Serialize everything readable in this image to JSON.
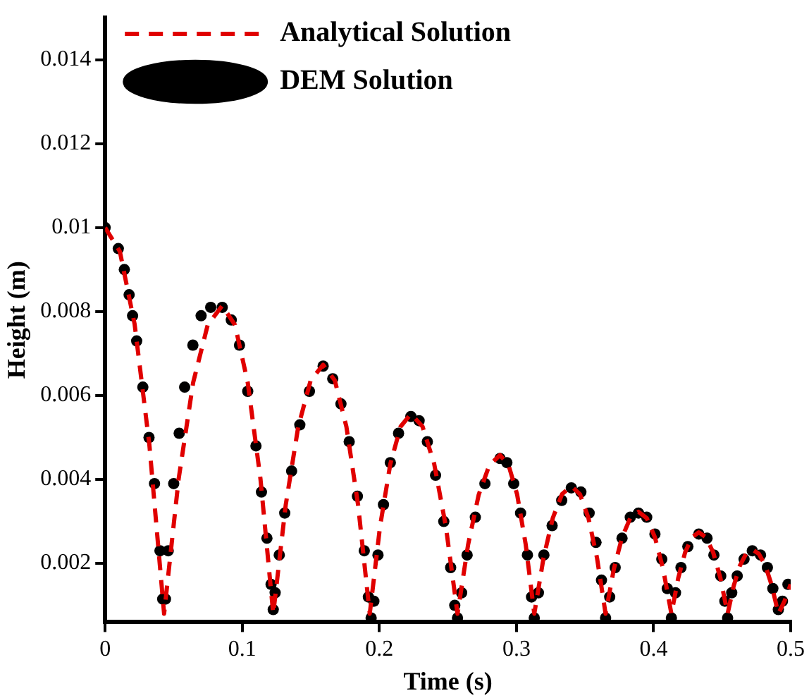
{
  "chart_data": {
    "type": "line",
    "xlabel": "Time (s)",
    "ylabel": "Height (m)",
    "xlim": [
      0,
      0.5
    ],
    "ylim": [
      0.0006,
      0.015
    ],
    "xticks": [
      0,
      0.1,
      0.2,
      0.3,
      0.4,
      0.5
    ],
    "yticks": [
      0.002,
      0.004,
      0.006,
      0.008,
      0.01,
      0.012,
      0.014
    ],
    "legend": "top left",
    "series": [
      {
        "name": "Analytical Solution",
        "type": "line",
        "line_style": "dashed",
        "marker": "none",
        "color": "#e00000",
        "x": [
          0,
          0.01075,
          0.0215,
          0.03225,
          0.043,
          0.0536,
          0.0642,
          0.0748,
          0.0854,
          0.0947,
          0.104,
          0.1133,
          0.1226,
          0.1317,
          0.1408,
          0.1499,
          0.159,
          0.1675,
          0.176,
          0.1845,
          0.193,
          0.2005,
          0.208,
          0.2155,
          0.223,
          0.2315,
          0.24,
          0.2485,
          0.257,
          0.26475,
          0.2725,
          0.28025,
          0.288,
          0.29425,
          0.3005,
          0.30675,
          0.313,
          0.31975,
          0.3265,
          0.33325,
          0.34,
          0.34625,
          0.3525,
          0.35875,
          0.365,
          0.371,
          0.377,
          0.383,
          0.389,
          0.395,
          0.401,
          0.407,
          0.413,
          0.418,
          0.423,
          0.428,
          0.433,
          0.43825,
          0.4435,
          0.44875,
          0.454,
          0.4585,
          0.463,
          0.4675,
          0.472,
          0.47675,
          0.4815,
          0.48625,
          0.491,
          0.4955,
          0.5
        ],
        "values": [
          0.01,
          0.00943,
          0.0077,
          0.00483,
          0.0008,
          0.00401,
          0.00631,
          0.00768,
          0.00814,
          0.00768,
          0.00631,
          0.00401,
          0.0008,
          0.00339,
          0.00525,
          0.00636,
          0.00673,
          0.00636,
          0.00525,
          0.00339,
          0.0008,
          0.00288,
          0.00437,
          0.00526,
          0.00556,
          0.00526,
          0.00437,
          0.00288,
          0.0008,
          0.00245,
          0.00364,
          0.00434,
          0.00458,
          0.00434,
          0.00364,
          0.00245,
          0.0008,
          0.00213,
          0.00308,
          0.00365,
          0.00384,
          0.00365,
          0.00308,
          0.00213,
          0.0008,
          0.00186,
          0.00262,
          0.00308,
          0.00323,
          0.00308,
          0.00262,
          0.00186,
          0.0008,
          0.00165,
          0.00226,
          0.00262,
          0.00274,
          0.00262,
          0.00226,
          0.00165,
          0.0008,
          0.00147,
          0.00195,
          0.00223,
          0.00233,
          0.00223,
          0.00195,
          0.00147,
          0.0008,
          0.0011,
          0.0015
        ]
      },
      {
        "name": "DEM Solution",
        "type": "scatter",
        "marker": "circle",
        "color": "#000000",
        "x": [
          0,
          0.0096,
          0.014,
          0.0175,
          0.02,
          0.023,
          0.0275,
          0.032,
          0.036,
          0.04,
          0.042,
          0.044,
          0.046,
          0.05,
          0.054,
          0.058,
          0.064,
          0.07,
          0.077,
          0.0854,
          0.092,
          0.098,
          0.104,
          0.11,
          0.114,
          0.118,
          0.121,
          0.1226,
          0.124,
          0.127,
          0.131,
          0.136,
          0.142,
          0.149,
          0.159,
          0.166,
          0.172,
          0.178,
          0.184,
          0.189,
          0.192,
          0.194,
          0.196,
          0.199,
          0.203,
          0.208,
          0.214,
          0.223,
          0.229,
          0.235,
          0.241,
          0.247,
          0.252,
          0.255,
          0.257,
          0.26,
          0.264,
          0.27,
          0.277,
          0.288,
          0.293,
          0.298,
          0.303,
          0.308,
          0.311,
          0.313,
          0.316,
          0.32,
          0.326,
          0.333,
          0.34,
          0.347,
          0.353,
          0.358,
          0.362,
          0.365,
          0.368,
          0.372,
          0.377,
          0.383,
          0.389,
          0.395,
          0.401,
          0.406,
          0.41,
          0.413,
          0.416,
          0.42,
          0.425,
          0.433,
          0.439,
          0.444,
          0.449,
          0.452,
          0.454,
          0.457,
          0.461,
          0.466,
          0.472,
          0.478,
          0.483,
          0.487,
          0.491,
          0.494,
          0.498
        ],
        "values": [
          0.01,
          0.0095,
          0.009,
          0.0084,
          0.0079,
          0.0073,
          0.0062,
          0.005,
          0.0039,
          0.0023,
          0.00115,
          0.00115,
          0.0023,
          0.0039,
          0.0051,
          0.0062,
          0.0072,
          0.0079,
          0.0081,
          0.0081,
          0.0078,
          0.0072,
          0.0061,
          0.0048,
          0.0037,
          0.0026,
          0.0015,
          0.0009,
          0.0013,
          0.0022,
          0.0032,
          0.0042,
          0.0053,
          0.0061,
          0.0067,
          0.0064,
          0.0058,
          0.0049,
          0.0036,
          0.0023,
          0.0012,
          0.0007,
          0.0011,
          0.0022,
          0.0034,
          0.0044,
          0.0051,
          0.0055,
          0.0054,
          0.0049,
          0.0041,
          0.003,
          0.0019,
          0.001,
          0.0007,
          0.0013,
          0.0022,
          0.0031,
          0.0039,
          0.0045,
          0.0044,
          0.0039,
          0.0032,
          0.0022,
          0.0012,
          0.0007,
          0.0013,
          0.0022,
          0.0029,
          0.0035,
          0.0038,
          0.0037,
          0.0032,
          0.0025,
          0.0016,
          0.0007,
          0.0012,
          0.0019,
          0.0026,
          0.0031,
          0.0032,
          0.0031,
          0.0027,
          0.0021,
          0.0014,
          0.0007,
          0.0013,
          0.0019,
          0.0024,
          0.0027,
          0.0026,
          0.0022,
          0.0017,
          0.0011,
          0.0007,
          0.0013,
          0.0017,
          0.0021,
          0.0023,
          0.0022,
          0.0019,
          0.0014,
          0.0009,
          0.0011,
          0.0015
        ]
      }
    ]
  }
}
